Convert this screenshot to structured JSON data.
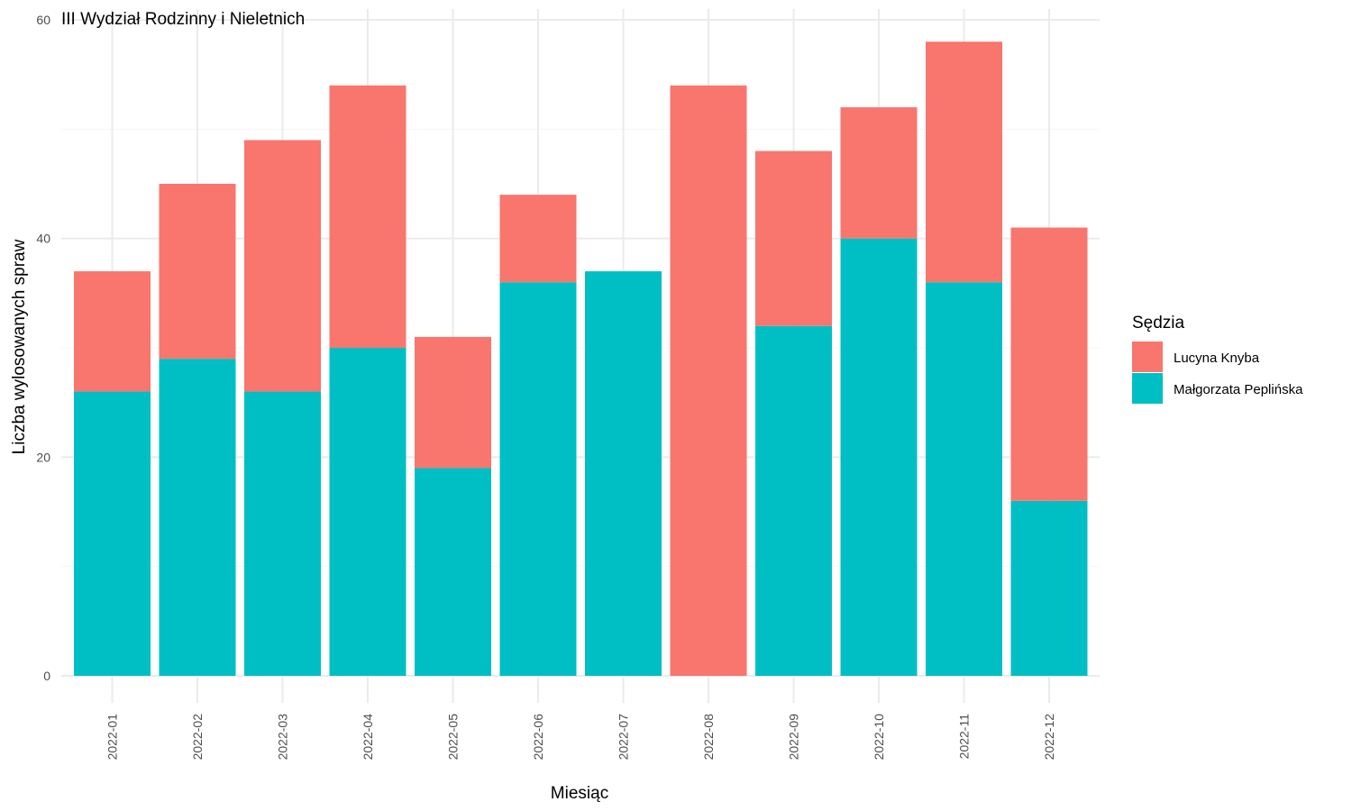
{
  "chart_data": {
    "type": "bar",
    "stacked": true,
    "title": "III Wydział Rodzinny i Nieletnich",
    "xlabel": "Miesiąc",
    "ylabel": "Liczba wylosowanych spraw",
    "ylim": [
      0,
      60
    ],
    "yticks": [
      0,
      20,
      40,
      60
    ],
    "grid": true,
    "legend": {
      "title": "Sędzia",
      "position": "right"
    },
    "categories": [
      "2022-01",
      "2022-02",
      "2022-03",
      "2022-04",
      "2022-05",
      "2022-06",
      "2022-07",
      "2022-08",
      "2022-09",
      "2022-10",
      "2022-11",
      "2022-12"
    ],
    "series": [
      {
        "name": "Małgorzata Peplińska",
        "color": "#00BFC4",
        "values": [
          26,
          29,
          26,
          30,
          19,
          36,
          37,
          0,
          32,
          40,
          36,
          16
        ]
      },
      {
        "name": "Lucyna Knyba",
        "color": "#F8766D",
        "values": [
          11,
          16,
          23,
          24,
          12,
          8,
          0,
          54,
          16,
          12,
          22,
          25
        ]
      }
    ],
    "legend_order": [
      "Lucyna Knyba",
      "Małgorzata Peplińska"
    ]
  }
}
